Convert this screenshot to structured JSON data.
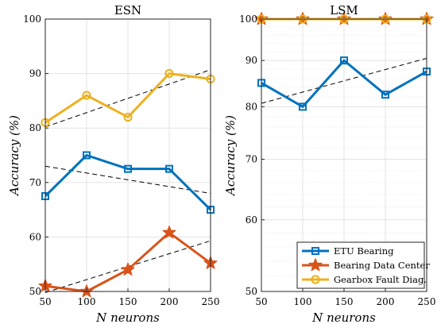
{
  "chart_data": [
    {
      "type": "line",
      "title": "ESN",
      "xlabel": "N neurons",
      "ylabel": "Accuracy (%)",
      "x": [
        50,
        100,
        150,
        200,
        250
      ],
      "xlim": [
        50,
        250
      ],
      "ylim": [
        50,
        100
      ],
      "yscale": "linear",
      "xticks": [
        "50",
        "100",
        "150",
        "200",
        "250"
      ],
      "yticks": [
        "50",
        "60",
        "70",
        "80",
        "90",
        "100"
      ],
      "grid": true,
      "series": [
        {
          "name": "ETU Bearing",
          "color": "#0072BD",
          "marker": "square",
          "values": [
            67.5,
            75,
            72.5,
            72.5,
            65
          ],
          "trend": [
            73,
            68
          ]
        },
        {
          "name": "Bearing Data Center",
          "color": "#D95319",
          "marker": "star",
          "values": [
            51,
            50,
            54,
            60.8,
            55.2
          ],
          "trend": [
            49.8,
            59.3
          ]
        },
        {
          "name": "Gearbox Fault Diag.",
          "color": "#EDB120",
          "marker": "circle",
          "values": [
            81,
            86,
            82,
            90,
            89
          ],
          "trend": [
            80.2,
            90.7
          ]
        }
      ]
    },
    {
      "type": "line",
      "title": "LSM",
      "xlabel": "N neurons",
      "ylabel": "Accuracy (%)",
      "x": [
        50,
        100,
        150,
        200,
        250
      ],
      "xlim": [
        50,
        250
      ],
      "ylim": [
        50,
        100
      ],
      "yscale": "log",
      "xticks": [
        "50",
        "100",
        "150",
        "200",
        "250"
      ],
      "yticks": [
        "50",
        "60",
        "70",
        "80",
        "90",
        "100"
      ],
      "grid": true,
      "legend": "bottom-right",
      "series": [
        {
          "name": "ETU Bearing",
          "color": "#0072BD",
          "marker": "square",
          "values": [
            85,
            80,
            90,
            82.5,
            87.5
          ],
          "trend": [
            80.7,
            90.5
          ]
        },
        {
          "name": "Bearing Data Center",
          "color": "#D95319",
          "marker": "star",
          "values": [
            100,
            100,
            100,
            100,
            100
          ],
          "trend": [
            100,
            100
          ]
        },
        {
          "name": "Gearbox Fault Diag.",
          "color": "#EDB120",
          "marker": "circle",
          "values": [
            100,
            100,
            100,
            100,
            100
          ],
          "trend": [
            100,
            100
          ]
        }
      ]
    }
  ]
}
